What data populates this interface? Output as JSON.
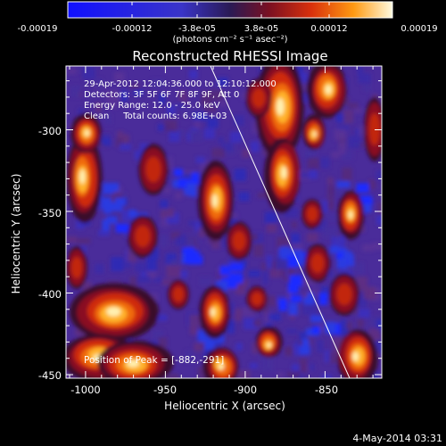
{
  "colorbar": {
    "tick_labels": [
      "-0.00019",
      "-0.00012",
      "-3.8e-05",
      "3.8e-05",
      "0.00012",
      "0.00019"
    ],
    "units": "(photons cm⁻² s⁻¹ asec⁻²)",
    "range": [
      -0.00019,
      0.00019
    ]
  },
  "image": {
    "title": "Reconstructed RHESSI Image",
    "info_lines": [
      "29-Apr-2012 12:04:36.000 to 12:10:12.000",
      "Detectors: 3F 5F 6F 7F 8F 9F, Att 0",
      "Energy Range: 12.0 - 25.0 keV",
      "Clean     Total counts: 6.98E+03"
    ],
    "peak_label": "Position of Peak = [-882,-291]",
    "xlabel": "Heliocentric X (arcsec)",
    "ylabel": "Heliocentric Y (arcsec)",
    "x_ticks": [
      "-1000",
      "-950",
      "-900",
      "-850"
    ],
    "y_ticks": [
      "-300",
      "-350",
      "-400",
      "-450"
    ],
    "xlim": [
      -1012,
      -818
    ],
    "ylim": [
      -452,
      -274
    ]
  },
  "footer": {
    "date": "4-May-2014 03:31"
  },
  "colors": {
    "positive_peak": "#fff6c8",
    "background_purple": "#4a2c9a",
    "negative": "#1a2cff",
    "limb_line": "#ffffff"
  }
}
